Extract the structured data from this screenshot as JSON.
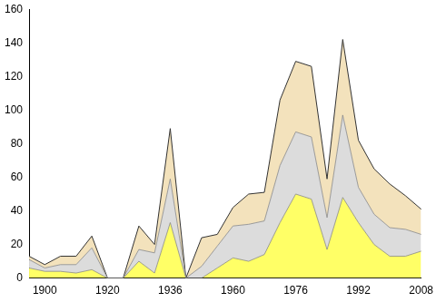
{
  "chart_data": {
    "type": "area",
    "stacked": true,
    "grid": false,
    "categories": [
      null,
      "1900",
      null,
      null,
      null,
      "1920",
      null,
      null,
      null,
      "1936",
      null,
      null,
      null,
      "1960",
      null,
      null,
      null,
      "1976",
      null,
      null,
      null,
      "1992",
      null,
      null,
      null,
      "2008"
    ],
    "series": [
      {
        "color": "#ffff66",
        "values": [
          6,
          4,
          4,
          3,
          5,
          0,
          0,
          10,
          3,
          33,
          0,
          0,
          6,
          12,
          10,
          14,
          33,
          50,
          47,
          17,
          48,
          33,
          20,
          13,
          13,
          16
        ]
      },
      {
        "color": "#dcdcdc",
        "values": [
          5,
          2,
          4,
          5,
          13,
          0,
          0,
          7,
          12,
          26,
          0,
          7,
          13,
          19,
          22,
          20,
          34,
          37,
          37,
          19,
          49,
          21,
          18,
          17,
          16,
          10
        ]
      },
      {
        "color": "#f3e2bc",
        "values": [
          2,
          2,
          5,
          5,
          7,
          0,
          0,
          14,
          5,
          30,
          0,
          17,
          7,
          11,
          18,
          17,
          39,
          42,
          42,
          23,
          45,
          28,
          27,
          26,
          20,
          15
        ]
      }
    ],
    "ylim": [
      0,
      160
    ],
    "yticks": [
      0,
      20,
      40,
      60,
      80,
      100,
      120,
      140,
      160
    ]
  }
}
